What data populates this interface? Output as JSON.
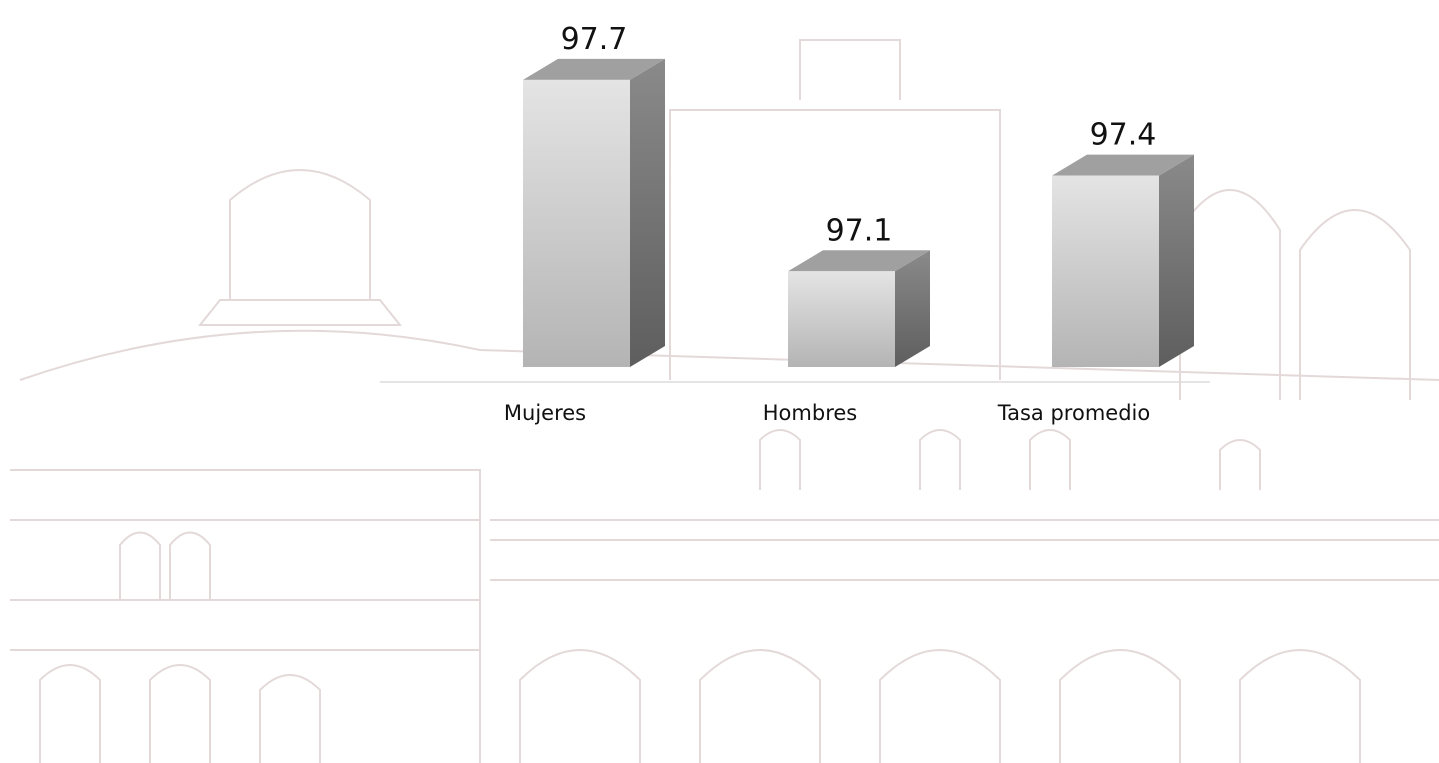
{
  "chart_data": {
    "type": "bar3d",
    "categories": [
      "Mujeres",
      "Hombres",
      "Tasa promedio"
    ],
    "values": [
      97.7,
      97.1,
      97.4
    ],
    "color": "#c8c8c8",
    "ylim": [
      96.8,
      97.8
    ]
  }
}
